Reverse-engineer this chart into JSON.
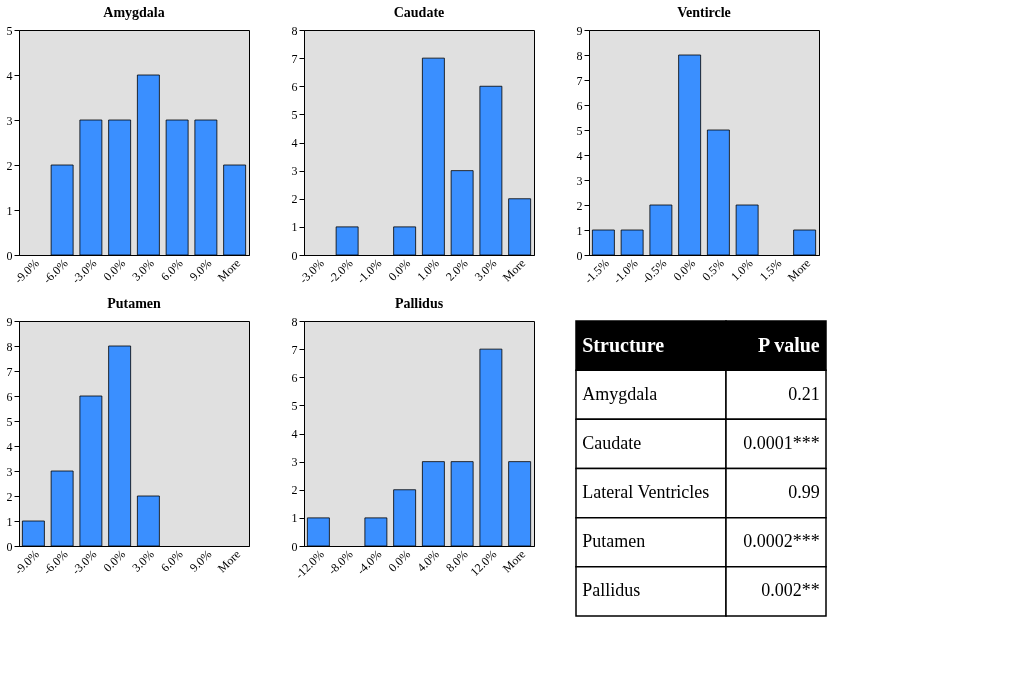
{
  "chart_data": [
    {
      "type": "bar",
      "title": "Amygdala",
      "categories": [
        "-9.0%",
        "-6.0%",
        "-3.0%",
        "0.0%",
        "3.0%",
        "6.0%",
        "9.0%",
        "More"
      ],
      "values": [
        0,
        2,
        3,
        3,
        4,
        3,
        3,
        2
      ],
      "color": "#3a8fff",
      "ylim": [
        0,
        5
      ],
      "yticks": [
        0,
        1,
        2,
        3,
        4,
        5
      ],
      "grid": false
    },
    {
      "type": "bar",
      "title": "Caudate",
      "categories": [
        "-3.0%",
        "-2.0%",
        "-1.0%",
        "0.0%",
        "1.0%",
        "2.0%",
        "3.0%",
        "More"
      ],
      "values": [
        0,
        1,
        0,
        1,
        7,
        3,
        6,
        2
      ],
      "color": "#3a8fff",
      "ylim": [
        0,
        8
      ],
      "yticks": [
        0,
        1,
        2,
        3,
        4,
        5,
        6,
        7,
        8
      ],
      "grid": false
    },
    {
      "type": "bar",
      "title": "Ventircle",
      "categories": [
        "-1.5%",
        "-1.0%",
        "-0.5%",
        "0.0%",
        "0.5%",
        "1.0%",
        "1.5%",
        "More"
      ],
      "values": [
        1,
        1,
        2,
        8,
        5,
        2,
        0,
        1
      ],
      "color": "#3a8fff",
      "ylim": [
        0,
        9
      ],
      "yticks": [
        0,
        1,
        2,
        3,
        4,
        5,
        6,
        7,
        8,
        9
      ],
      "grid": false
    },
    {
      "type": "bar",
      "title": "Putamen",
      "categories": [
        "-9.0%",
        "-6.0%",
        "-3.0%",
        "0.0%",
        "3.0%",
        "6.0%",
        "9.0%",
        "More"
      ],
      "values": [
        1,
        3,
        6,
        8,
        2,
        0,
        0,
        0
      ],
      "color": "#3a8fff",
      "ylim": [
        0,
        9
      ],
      "yticks": [
        0,
        1,
        2,
        3,
        4,
        5,
        6,
        7,
        8,
        9
      ],
      "grid": false
    },
    {
      "type": "bar",
      "title": "Pallidus",
      "categories": [
        "-12.0%",
        "-8.0%",
        "-4.0%",
        "0.0%",
        "4.0%",
        "8.0%",
        "12.0%",
        "More"
      ],
      "values": [
        1,
        0,
        1,
        2,
        3,
        3,
        7,
        3
      ],
      "color": "#3a8fff",
      "ylim": [
        0,
        8
      ],
      "yticks": [
        0,
        1,
        2,
        3,
        4,
        5,
        6,
        7,
        8
      ],
      "grid": false
    },
    {
      "type": "other",
      "annotations": [
        "Structure",
        "P value",
        "Amygdala",
        "0.21",
        "Caudate",
        "0.0001***",
        "Lateral Ventricles",
        "0.99",
        "Putamen",
        "0.0002***",
        "Pallidus",
        "0.002**"
      ]
    }
  ]
}
